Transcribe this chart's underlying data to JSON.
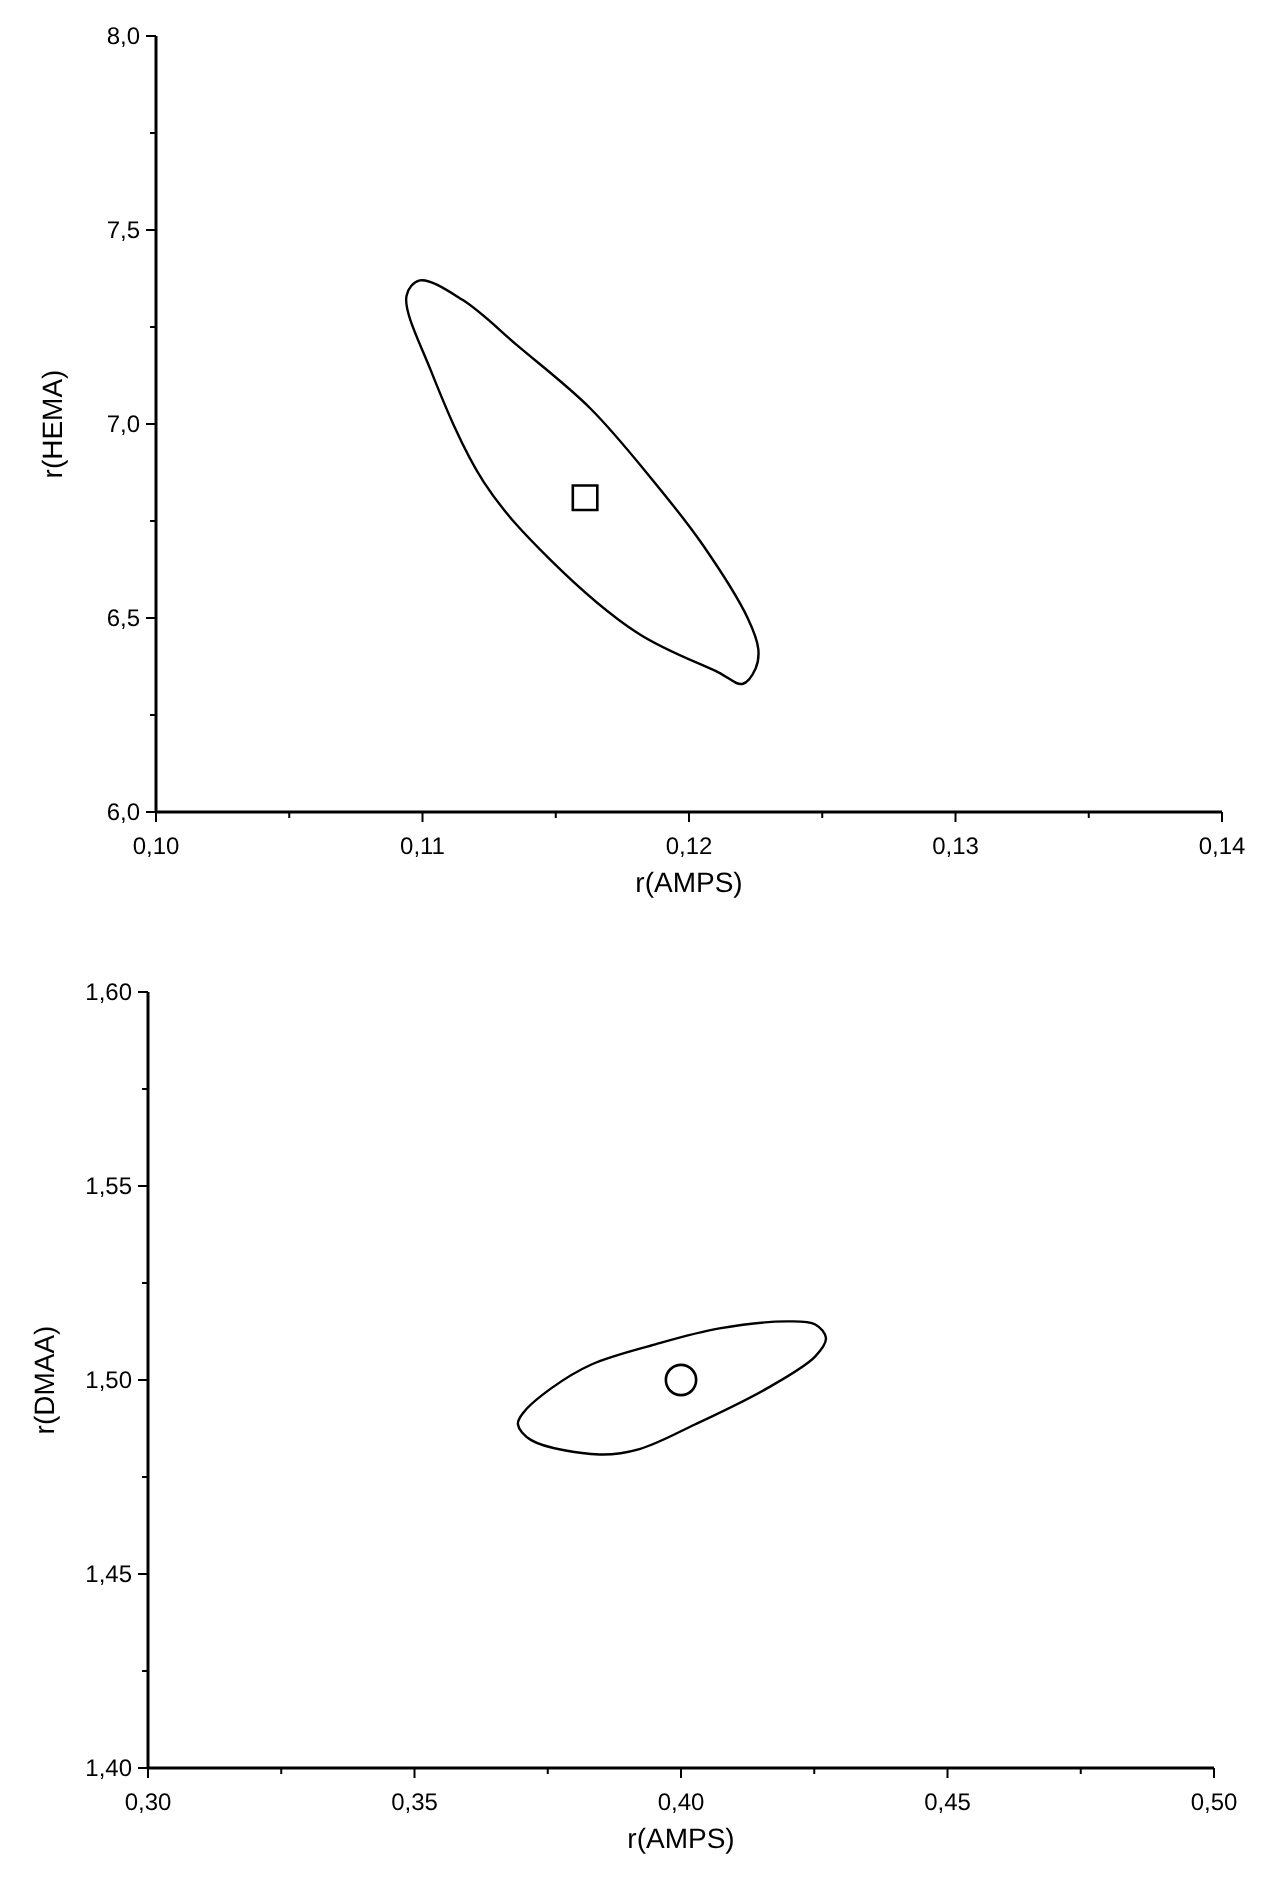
{
  "chart_data": [
    {
      "type": "scatter",
      "xlabel": "r(AMPS)",
      "ylabel": "r(HEMA)",
      "xlim": [
        0.1,
        0.14
      ],
      "ylim": [
        6.0,
        8.0
      ],
      "xticks": [
        {
          "value": 0.1,
          "label": "0,10"
        },
        {
          "value": 0.105,
          "label": null
        },
        {
          "value": 0.11,
          "label": "0,11"
        },
        {
          "value": 0.115,
          "label": null
        },
        {
          "value": 0.12,
          "label": "0,12"
        },
        {
          "value": 0.125,
          "label": null
        },
        {
          "value": 0.13,
          "label": "0,13"
        },
        {
          "value": 0.135,
          "label": null
        },
        {
          "value": 0.14,
          "label": "0,14"
        }
      ],
      "yticks": [
        {
          "value": 6.0,
          "label": "6,0"
        },
        {
          "value": 6.25,
          "label": null
        },
        {
          "value": 6.5,
          "label": "6,5"
        },
        {
          "value": 6.75,
          "label": null
        },
        {
          "value": 7.0,
          "label": "7,0"
        },
        {
          "value": 7.25,
          "label": null
        },
        {
          "value": 7.5,
          "label": "7,5"
        },
        {
          "value": 7.75,
          "label": null
        },
        {
          "value": 8.0,
          "label": "8,0"
        }
      ],
      "grid": false,
      "series": [
        {
          "color": "#000000",
          "marker": "square",
          "x": [
            0.1161
          ],
          "values": [
            6.81
          ]
        }
      ]
    },
    {
      "type": "scatter",
      "xlabel": "r(AMPS)",
      "ylabel": "r(DMAA)",
      "xlim": [
        0.3,
        0.5
      ],
      "ylim": [
        1.4,
        1.6
      ],
      "xticks": [
        {
          "value": 0.3,
          "label": "0,30"
        },
        {
          "value": 0.325,
          "label": null
        },
        {
          "value": 0.35,
          "label": "0,35"
        },
        {
          "value": 0.375,
          "label": null
        },
        {
          "value": 0.4,
          "label": "0,40"
        },
        {
          "value": 0.425,
          "label": null
        },
        {
          "value": 0.45,
          "label": "0,45"
        },
        {
          "value": 0.475,
          "label": null
        },
        {
          "value": 0.5,
          "label": "0,50"
        }
      ],
      "yticks": [
        {
          "value": 1.4,
          "label": "1,40"
        },
        {
          "value": 1.425,
          "label": null
        },
        {
          "value": 1.45,
          "label": "1,45"
        },
        {
          "value": 1.475,
          "label": null
        },
        {
          "value": 1.5,
          "label": "1,50"
        },
        {
          "value": 1.525,
          "label": null
        },
        {
          "value": 1.55,
          "label": "1,55"
        },
        {
          "value": 1.575,
          "label": null
        },
        {
          "value": 1.6,
          "label": "1,60"
        }
      ],
      "grid": false,
      "series": [
        {
          "color": "#000000",
          "marker": "circle",
          "x": [
            0.4
          ],
          "values": [
            1.5
          ]
        }
      ]
    }
  ]
}
